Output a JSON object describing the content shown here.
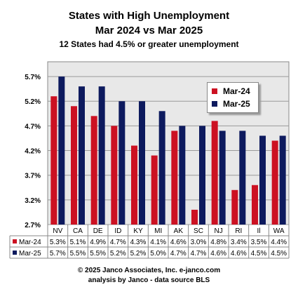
{
  "chart_data": {
    "type": "bar",
    "title": "States with High Unemployment",
    "subtitle": "Mar 2024 vs Mar 2025",
    "note": "12  States had 4.5% or greater unemployment",
    "categories": [
      "NV",
      "CA",
      "DE",
      "ID",
      "KY",
      "MI",
      "AK",
      "SC",
      "NJ",
      "RI",
      "Il",
      "WA"
    ],
    "series": [
      {
        "name": "Mar-24",
        "color": "#cc1122",
        "values": [
          5.3,
          5.1,
          4.9,
          4.7,
          4.3,
          4.1,
          4.6,
          3.0,
          4.8,
          3.4,
          3.5,
          4.4
        ],
        "labels": [
          "5.3%",
          "5.1%",
          "4.9%",
          "4.7%",
          "4.3%",
          "4.1%",
          "4.6%",
          "3.0%",
          "4.8%",
          "3.4%",
          "3.5%",
          "4.4%"
        ]
      },
      {
        "name": "Mar-25",
        "color": "#0d1a5e",
        "values": [
          5.7,
          5.5,
          5.5,
          5.2,
          5.2,
          5.0,
          4.7,
          4.7,
          4.6,
          4.6,
          4.5,
          4.5
        ],
        "labels": [
          "5.7%",
          "5.5%",
          "5.5%",
          "5.2%",
          "5.2%",
          "5.0%",
          "4.7%",
          "4.7%",
          "4.6%",
          "4.6%",
          "4.5%",
          "4.5%"
        ]
      }
    ],
    "yticks": [
      2.7,
      3.2,
      3.7,
      4.2,
      4.7,
      5.2,
      5.7
    ],
    "ytick_labels": [
      "2.7%",
      "3.2%",
      "3.7%",
      "4.2%",
      "4.7%",
      "5.2%",
      "5.7%"
    ],
    "ylim": [
      2.7,
      6.0
    ],
    "grid": true,
    "legend_position": "top-right",
    "data_table": true
  },
  "footer": {
    "line1": "© 2025 Janco Associates, Inc. e-janco.com",
    "line2": "analysis by Janco - data source BLS"
  }
}
